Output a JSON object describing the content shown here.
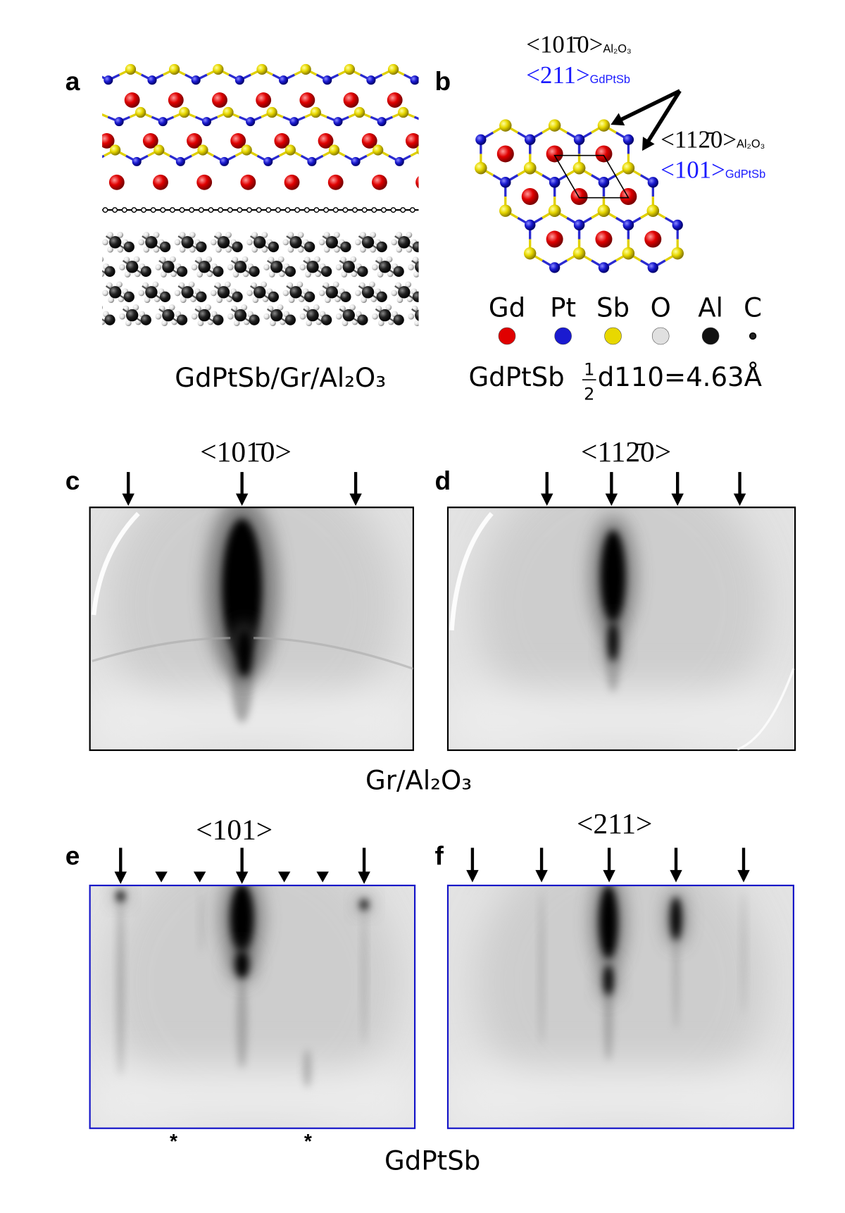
{
  "panel_a": {
    "label": "a",
    "caption": "GdPtSb/Gr/Al₂O₃"
  },
  "panel_b": {
    "label": "b",
    "directions": [
      {
        "text": "<101̄0>",
        "sub": "Al₂O₃"
      },
      {
        "text": "<211>",
        "sub": "GdPtSb"
      },
      {
        "text": "<112̄0>",
        "sub": "Al₂O₃"
      },
      {
        "text": "<101>",
        "sub": "GdPtSb"
      }
    ],
    "legend": [
      {
        "name": "Gd",
        "color": "#e00000"
      },
      {
        "name": "Pt",
        "color": "#1a1ad0"
      },
      {
        "name": "Sb",
        "color": "#e8d800"
      },
      {
        "name": "O",
        "color": "#e0e0e0"
      },
      {
        "name": "Al",
        "color": "#111111"
      },
      {
        "name": "C",
        "color": "#222222"
      }
    ],
    "formula": {
      "prefix": "GdPtSb",
      "numerator": "1",
      "denominator": "2",
      "rest": "d110=4.63Å"
    }
  },
  "panel_c": {
    "label": "c",
    "title": "<101̄0>"
  },
  "panel_d": {
    "label": "d",
    "title": "<112̄0>"
  },
  "caption_cd": "Gr/Al₂O₃",
  "panel_e": {
    "label": "e",
    "title": "<101>",
    "markers": [
      "*",
      "*"
    ]
  },
  "panel_f": {
    "label": "f",
    "title": "<211>"
  },
  "caption_ef": "GdPtSb"
}
